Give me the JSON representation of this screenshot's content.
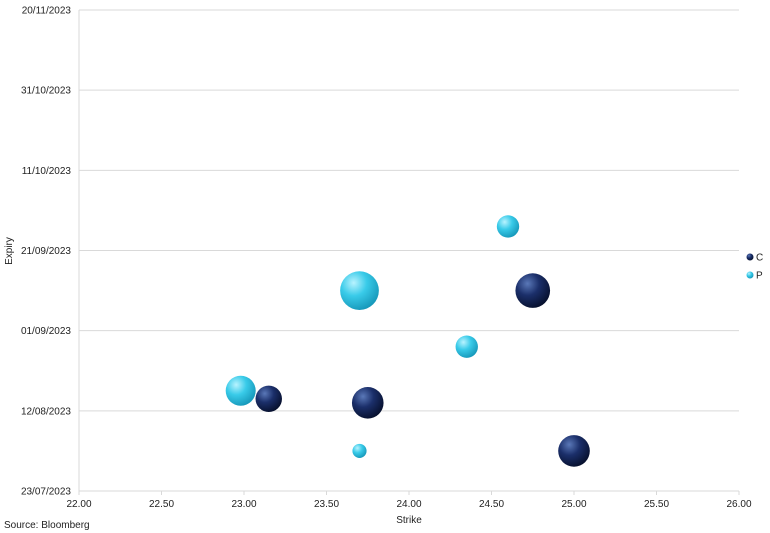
{
  "chart_data": {
    "type": "scatter",
    "subtype": "bubble",
    "xlabel": "Strike",
    "ylabel": "Expiry",
    "xlim": [
      22.0,
      26.0
    ],
    "ylim": [
      "2023-07-23",
      "2023-11-20"
    ],
    "x_ticks": [
      "22.00",
      "22.50",
      "23.00",
      "23.50",
      "24.00",
      "24.50",
      "25.00",
      "25.50",
      "26.00"
    ],
    "y_ticks": [
      "20/11/2023",
      "31/10/2023",
      "11/10/2023",
      "21/09/2023",
      "01/09/2023",
      "12/08/2023",
      "23/07/2023"
    ],
    "grid": "horizontal",
    "legend": "right",
    "series": [
      {
        "name": "C",
        "color": "#0d1f4d",
        "points": [
          {
            "x": 23.15,
            "y": "2023-08-15",
            "size": 7
          },
          {
            "x": 23.75,
            "y": "2023-08-14",
            "size": 10
          },
          {
            "x": 24.75,
            "y": "2023-09-11",
            "size": 12
          },
          {
            "x": 25.0,
            "y": "2023-08-02",
            "size": 10
          }
        ]
      },
      {
        "name": "P",
        "color": "#2ec4e6",
        "points": [
          {
            "x": 22.98,
            "y": "2023-08-17",
            "size": 9
          },
          {
            "x": 23.7,
            "y": "2023-09-11",
            "size": 15
          },
          {
            "x": 24.35,
            "y": "2023-08-28",
            "size": 5
          },
          {
            "x": 24.6,
            "y": "2023-09-27",
            "size": 5
          },
          {
            "x": 23.7,
            "y": "2023-08-02",
            "size": 2
          }
        ]
      }
    ]
  },
  "source": "Source: Bloomberg"
}
